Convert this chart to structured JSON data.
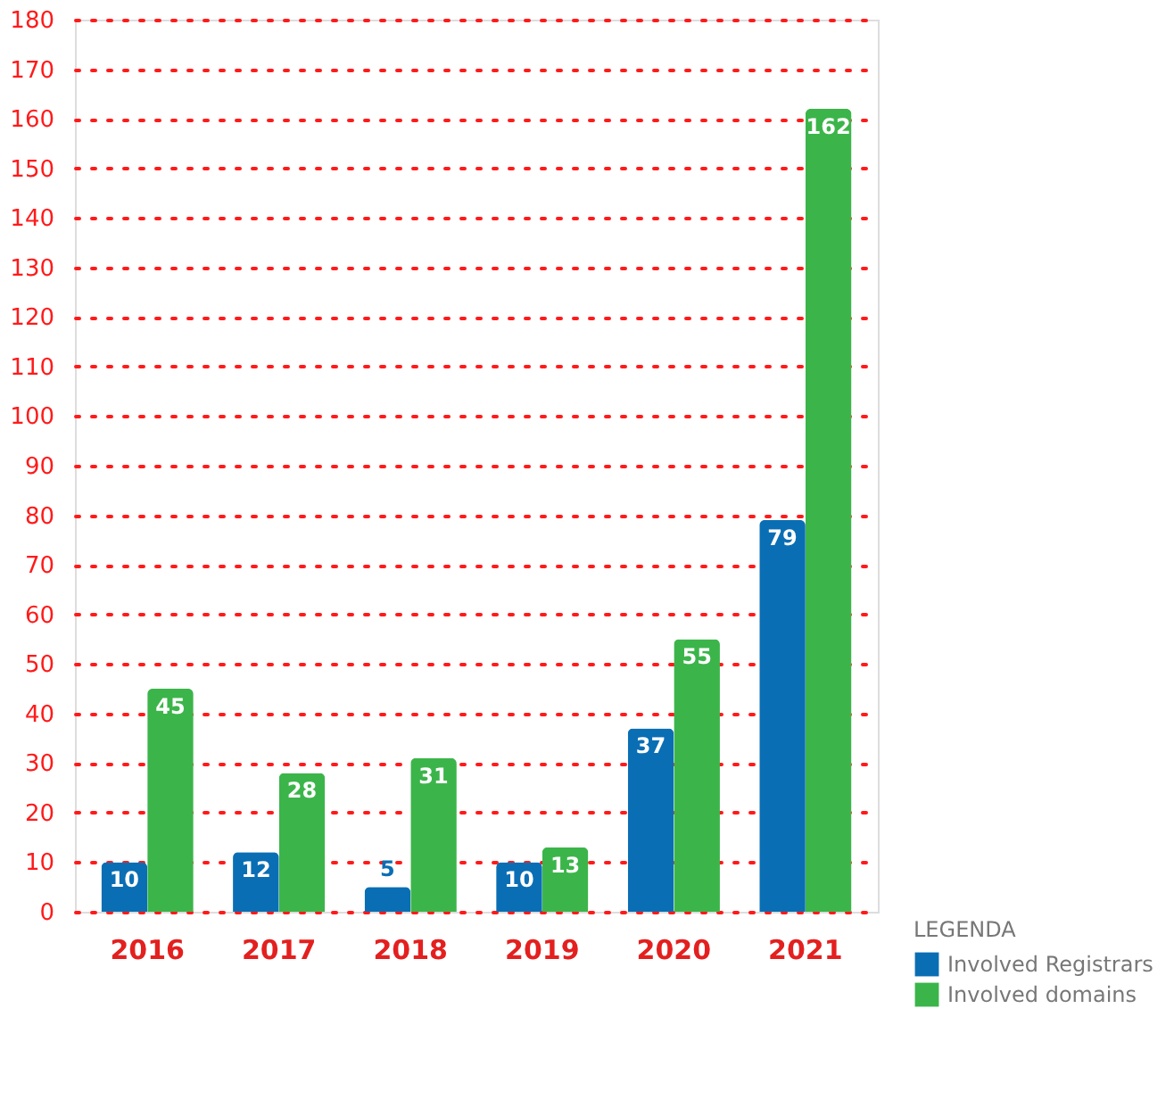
{
  "chart_data": {
    "type": "bar",
    "categories": [
      "2016",
      "2017",
      "2018",
      "2019",
      "2020",
      "2021"
    ],
    "series": [
      {
        "name": "Involved Registrars",
        "color": "#0a6eb4",
        "values": [
          10,
          12,
          5,
          10,
          37,
          79
        ]
      },
      {
        "name": "Involved domains",
        "color": "#3bb54a",
        "values": [
          45,
          28,
          31,
          13,
          55,
          162
        ]
      }
    ],
    "legend_title": "LEGENDA",
    "legend": "bottom right",
    "data_labels": true,
    "grid": "y",
    "ylim": [
      0,
      180
    ],
    "yticks": [
      0,
      10,
      20,
      30,
      40,
      50,
      60,
      70,
      80,
      90,
      100,
      110,
      120,
      130,
      140,
      150,
      160,
      170,
      180
    ]
  }
}
